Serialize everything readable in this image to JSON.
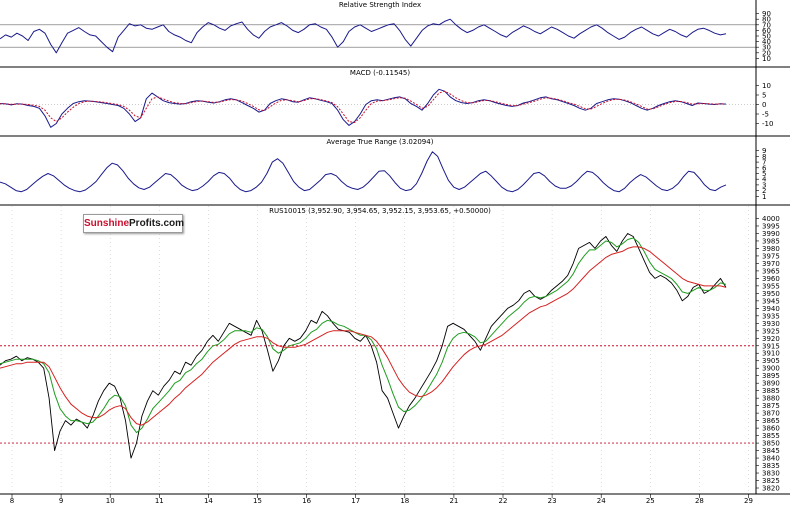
{
  "chart_data": [
    {
      "type": "line",
      "title": "Relative Strength Index",
      "ylim": [
        0,
        100
      ],
      "y_ticks": [
        10,
        20,
        30,
        40,
        50,
        60,
        70,
        80,
        90
      ],
      "reference_lines": [
        30,
        70
      ],
      "series": [
        {
          "color": "#1a1a8c",
          "values": [
            45,
            52,
            48,
            55,
            50,
            42,
            58,
            62,
            55,
            35,
            20,
            38,
            55,
            60,
            65,
            58,
            52,
            50,
            40,
            30,
            22,
            48,
            60,
            72,
            68,
            70,
            64,
            62,
            66,
            70,
            58,
            52,
            48,
            42,
            38,
            56,
            66,
            74,
            70,
            64,
            60,
            68,
            72,
            75,
            62,
            52,
            46,
            58,
            66,
            70,
            74,
            68,
            60,
            56,
            62,
            70,
            72,
            66,
            62,
            48,
            30,
            40,
            58,
            66,
            70,
            64,
            58,
            62,
            66,
            70,
            72,
            60,
            44,
            32,
            46,
            60,
            68,
            72,
            70,
            76,
            80,
            70,
            62,
            56,
            60,
            66,
            70,
            64,
            58,
            52,
            48,
            56,
            62,
            68,
            64,
            58,
            54,
            60,
            66,
            62,
            56,
            50,
            46,
            54,
            60,
            66,
            70,
            64,
            56,
            50,
            44,
            48,
            56,
            62,
            66,
            60,
            54,
            50,
            56,
            62,
            58,
            52,
            48,
            56,
            62,
            64,
            60,
            55,
            52,
            54
          ]
        }
      ]
    },
    {
      "type": "line",
      "title": "MACD (-0.11545)",
      "ylim": [
        -15,
        15
      ],
      "y_ticks": [
        -10,
        -5,
        0,
        5,
        10
      ],
      "series": [
        {
          "color": "#1a1a8c",
          "values": [
            0.5,
            0.3,
            -0.2,
            0.4,
            0.2,
            -0.5,
            -1,
            -2,
            -6,
            -12,
            -10,
            -5,
            -2,
            0.5,
            1.5,
            2,
            1.8,
            1.5,
            1,
            0.5,
            0,
            -0.5,
            -2,
            -5,
            -9,
            -7,
            3,
            6,
            4,
            2,
            1,
            0.5,
            0.2,
            0.5,
            1.5,
            2,
            1.8,
            1.2,
            0.8,
            1.5,
            2.5,
            3,
            2.4,
            1,
            -0.5,
            -2,
            -4,
            -3,
            0.5,
            2,
            3,
            2.5,
            1.5,
            1.2,
            2.5,
            3.5,
            3,
            2.2,
            1.5,
            0.5,
            -3,
            -8,
            -11,
            -9,
            -5,
            0,
            2,
            2.5,
            2,
            2.8,
            3.5,
            4,
            3,
            0.5,
            -1,
            -3,
            0.5,
            5,
            8,
            7,
            4,
            2,
            1,
            0.5,
            1,
            2,
            2.5,
            2,
            1,
            0.2,
            -0.5,
            -1,
            -0.5,
            0.8,
            1.5,
            2.5,
            3.5,
            4,
            3,
            2.5,
            1.5,
            0.5,
            -0.5,
            -2,
            -3,
            -2,
            0.5,
            1.5,
            2.5,
            3,
            2.8,
            2,
            1,
            -0.5,
            -2,
            -3,
            -2,
            -0.5,
            0.5,
            1.5,
            2,
            1.5,
            0.5,
            -0.5,
            0.8,
            0.5,
            0.2,
            0,
            0.4,
            0.2
          ]
        },
        {
          "color": "#c8102e",
          "dashed": true,
          "values": [
            0.4,
            0.35,
            0.1,
            0.2,
            0.2,
            0,
            -0.4,
            -1,
            -3,
            -7,
            -9,
            -7,
            -4,
            -1.5,
            0.5,
            1.5,
            1.8,
            1.6,
            1.3,
            0.9,
            0.4,
            0,
            -1,
            -3,
            -6,
            -7,
            -2,
            3,
            4,
            3,
            1.8,
            1,
            0.5,
            0.4,
            1,
            1.6,
            1.8,
            1.5,
            1.1,
            1.3,
            2,
            2.6,
            2.5,
            1.8,
            0.5,
            -1,
            -2.8,
            -3.2,
            -1.2,
            0.8,
            2.2,
            2.5,
            2,
            1.5,
            2,
            3,
            3.1,
            2.6,
            1.9,
            1,
            -1.2,
            -5,
            -9,
            -9.5,
            -7,
            -3,
            0.5,
            1.8,
            2,
            2.4,
            3,
            3.6,
            3.3,
            1.8,
            0,
            -2,
            -1,
            2.5,
            6,
            7,
            5.5,
            3.5,
            2,
            1,
            0.9,
            1.5,
            2.1,
            2.1,
            1.5,
            0.7,
            0,
            -0.6,
            -0.6,
            0.2,
            1,
            1.8,
            2.8,
            3.5,
            3.3,
            2.8,
            2,
            1,
            0.2,
            -1,
            -2.2,
            -2.4,
            -1,
            0.5,
            1.8,
            2.6,
            2.8,
            2.3,
            1.5,
            0.3,
            -1,
            -2.4,
            -2.3,
            -1.2,
            0,
            1,
            1.6,
            1.6,
            1,
            0.2,
            0.4,
            0.5,
            0.4,
            0.2,
            0.3,
            0.25
          ]
        }
      ]
    },
    {
      "type": "line",
      "title": "Average True Range (3.02094)",
      "ylim": [
        0,
        10
      ],
      "y_ticks": [
        1,
        2,
        3,
        4,
        5,
        6,
        7,
        8,
        9
      ],
      "series": [
        {
          "color": "#1a1a8c",
          "values": [
            3.5,
            3.2,
            2.6,
            2.0,
            1.8,
            2.2,
            3.0,
            3.8,
            4.5,
            5.0,
            4.6,
            3.8,
            3.0,
            2.4,
            2.0,
            1.8,
            2.1,
            2.8,
            3.6,
            4.8,
            6.0,
            6.8,
            6.5,
            5.5,
            4.2,
            3.2,
            2.5,
            2.2,
            2.6,
            3.4,
            4.2,
            5.0,
            4.8,
            4.0,
            3.0,
            2.4,
            2.0,
            2.2,
            2.8,
            3.6,
            4.6,
            5.2,
            5.0,
            4.2,
            3.0,
            2.2,
            1.8,
            2.0,
            2.6,
            3.5,
            5.0,
            7.0,
            7.6,
            6.8,
            5.2,
            3.6,
            2.6,
            2.0,
            2.2,
            3.0,
            3.8,
            4.8,
            5.0,
            4.6,
            3.6,
            2.8,
            2.4,
            2.2,
            2.6,
            3.4,
            4.4,
            5.4,
            5.5,
            4.6,
            3.4,
            2.4,
            2.0,
            2.2,
            3.2,
            5.0,
            7.2,
            8.8,
            8.0,
            5.8,
            3.8,
            2.6,
            2.2,
            2.6,
            3.4,
            4.2,
            5.0,
            5.4,
            4.6,
            3.6,
            2.6,
            2.0,
            1.8,
            2.2,
            3.0,
            4.0,
            5.0,
            5.2,
            4.6,
            3.6,
            2.8,
            2.4,
            2.4,
            2.8,
            3.6,
            4.6,
            5.4,
            5.2,
            4.4,
            3.4,
            2.6,
            2.0,
            1.8,
            2.4,
            3.4,
            4.2,
            4.8,
            4.4,
            3.6,
            2.8,
            2.2,
            2.0,
            2.4,
            3.2,
            4.4,
            5.4,
            5.2,
            4.2,
            3.0,
            2.2,
            2.0,
            2.6,
            3.0
          ]
        }
      ]
    },
    {
      "type": "line",
      "title": "RUS10015 (3,952.90, 3,954.65, 3,952.15, 3,953.65, +0.50000)",
      "ylim": [
        3818,
        4003
      ],
      "y_ticks": [
        3820,
        3825,
        3830,
        3835,
        3840,
        3845,
        3850,
        3855,
        3860,
        3865,
        3870,
        3875,
        3880,
        3885,
        3890,
        3895,
        3900,
        3905,
        3910,
        3915,
        3920,
        3925,
        3930,
        3935,
        3940,
        3945,
        3950,
        3955,
        3960,
        3965,
        3970,
        3975,
        3980,
        3985,
        3990,
        3995,
        4000
      ],
      "x_ticks": [
        "8",
        "9",
        "10",
        "11",
        "14",
        "15",
        "16",
        "17",
        "18",
        "21",
        "22",
        "23",
        "24",
        "25",
        "28",
        "29"
      ],
      "reference_lines": [
        3915,
        3850
      ],
      "series": [
        {
          "color": "#000000",
          "values": [
            3902,
            3905,
            3906,
            3908,
            3905,
            3907,
            3906,
            3904,
            3900,
            3880,
            3845,
            3858,
            3865,
            3862,
            3866,
            3864,
            3860,
            3868,
            3878,
            3885,
            3890,
            3888,
            3880,
            3865,
            3840,
            3850,
            3868,
            3878,
            3885,
            3882,
            3888,
            3892,
            3898,
            3896,
            3904,
            3902,
            3908,
            3912,
            3918,
            3922,
            3918,
            3924,
            3930,
            3928,
            3926,
            3924,
            3922,
            3932,
            3925,
            3912,
            3898,
            3905,
            3915,
            3920,
            3918,
            3920,
            3925,
            3932,
            3930,
            3938,
            3935,
            3930,
            3926,
            3925,
            3924,
            3920,
            3918,
            3922,
            3915,
            3904,
            3885,
            3880,
            3870,
            3860,
            3868,
            3875,
            3880,
            3886,
            3892,
            3898,
            3905,
            3915,
            3928,
            3930,
            3928,
            3926,
            3922,
            3918,
            3912,
            3920,
            3928,
            3932,
            3936,
            3940,
            3942,
            3945,
            3950,
            3952,
            3948,
            3946,
            3948,
            3952,
            3955,
            3958,
            3962,
            3970,
            3980,
            3982,
            3984,
            3980,
            3985,
            3988,
            3982,
            3978,
            3985,
            3990,
            3988,
            3980,
            3972,
            3964,
            3960,
            3962,
            3960,
            3957,
            3952,
            3945,
            3948,
            3954,
            3956,
            3950,
            3952,
            3956,
            3960,
            3954
          ]
        },
        {
          "color": "#1f9c1f",
          "values": [
            3903,
            3904,
            3905,
            3906,
            3906,
            3906,
            3906,
            3905,
            3903,
            3897,
            3883,
            3873,
            3868,
            3865,
            3865,
            3864,
            3863,
            3864,
            3868,
            3873,
            3879,
            3882,
            3881,
            3875,
            3862,
            3857,
            3860,
            3866,
            3873,
            3877,
            3881,
            3885,
            3890,
            3892,
            3897,
            3899,
            3903,
            3906,
            3911,
            3915,
            3916,
            3919,
            3923,
            3925,
            3925,
            3925,
            3924,
            3927,
            3926,
            3921,
            3913,
            3910,
            3912,
            3915,
            3916,
            3917,
            3920,
            3924,
            3926,
            3930,
            3932,
            3931,
            3929,
            3928,
            3926,
            3924,
            3922,
            3922,
            3919,
            3913,
            3902,
            3893,
            3883,
            3874,
            3871,
            3872,
            3875,
            3879,
            3884,
            3890,
            3896,
            3904,
            3914,
            3920,
            3923,
            3924,
            3923,
            3921,
            3917,
            3918,
            3922,
            3926,
            3930,
            3934,
            3937,
            3940,
            3944,
            3947,
            3948,
            3947,
            3948,
            3950,
            3952,
            3955,
            3958,
            3963,
            3970,
            3975,
            3979,
            3979,
            3982,
            3985,
            3984,
            3981,
            3983,
            3986,
            3987,
            3984,
            3978,
            3971,
            3966,
            3964,
            3962,
            3960,
            3956,
            3951,
            3950,
            3952,
            3954,
            3952,
            3952,
            3954,
            3957,
            3956
          ]
        },
        {
          "color": "#d62020",
          "values": [
            3900,
            3901,
            3902,
            3903,
            3903,
            3904,
            3904,
            3904,
            3904,
            3901,
            3894,
            3887,
            3881,
            3876,
            3873,
            3870,
            3868,
            3867,
            3867,
            3869,
            3872,
            3874,
            3875,
            3873,
            3867,
            3863,
            3862,
            3864,
            3867,
            3870,
            3873,
            3876,
            3880,
            3883,
            3887,
            3890,
            3893,
            3896,
            3900,
            3904,
            3907,
            3910,
            3913,
            3916,
            3918,
            3919,
            3920,
            3921,
            3921,
            3920,
            3917,
            3915,
            3914,
            3914,
            3914,
            3915,
            3916,
            3918,
            3920,
            3922,
            3924,
            3925,
            3925,
            3925,
            3925,
            3924,
            3923,
            3922,
            3921,
            3918,
            3913,
            3907,
            3900,
            3893,
            3888,
            3884,
            3882,
            3881,
            3882,
            3884,
            3887,
            3891,
            3896,
            3901,
            3905,
            3909,
            3912,
            3914,
            3915,
            3916,
            3918,
            3920,
            3922,
            3925,
            3928,
            3931,
            3934,
            3937,
            3939,
            3941,
            3942,
            3944,
            3946,
            3948,
            3950,
            3953,
            3957,
            3961,
            3965,
            3968,
            3971,
            3974,
            3976,
            3977,
            3978,
            3980,
            3981,
            3981,
            3980,
            3978,
            3975,
            3972,
            3969,
            3966,
            3963,
            3960,
            3958,
            3957,
            3956,
            3955,
            3955,
            3955,
            3955,
            3954
          ]
        }
      ]
    }
  ],
  "logo": {
    "part1": "Sunshine",
    "part2": "Profits.com"
  }
}
